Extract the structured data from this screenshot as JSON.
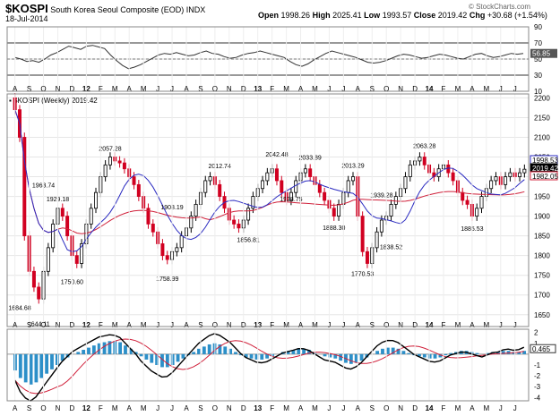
{
  "header": {
    "symbol": "$KOSPI",
    "name": "South Korea Seoul Composite (EOD)",
    "exchange": "INDX",
    "date": "18-Jul-2014",
    "open_label": "Open",
    "open": "1998.26",
    "high_label": "High",
    "high": "2025.41",
    "low_label": "Low",
    "low": "1993.57",
    "close_label": "Close",
    "close": "2019.42",
    "chg_label": "Chg",
    "chg": "+30.68 (+1.54%)",
    "watermark": "© StockCharts.com"
  },
  "colors": {
    "up": "#000000",
    "down": "#d10021",
    "ma_fast": "#2a2ac0",
    "ma_slow": "#d0203a",
    "macd_hist": "#2c8fc8",
    "osc_line": "#333333"
  },
  "chart_data": [
    {
      "type": "line",
      "panel": "oscillator",
      "ylim": [
        10,
        90
      ],
      "yticks": [
        10,
        30,
        50,
        70,
        90
      ],
      "levels": [
        30,
        50,
        70
      ],
      "last_value_label": "56.85",
      "values": [
        52,
        50,
        47,
        48,
        46,
        50,
        55,
        58,
        62,
        66,
        64,
        62,
        66,
        67,
        65,
        63,
        55,
        48,
        42,
        38,
        40,
        43,
        47,
        51,
        55,
        57,
        56,
        58,
        56,
        54,
        55,
        58,
        60,
        57,
        56,
        53,
        51,
        52,
        55,
        57,
        58,
        60,
        58,
        56,
        54,
        52,
        47,
        43,
        41,
        44,
        49,
        53,
        57,
        60,
        58,
        56,
        54,
        52,
        49,
        46,
        45,
        46,
        48,
        51,
        54,
        56,
        55,
        53,
        51,
        52,
        54,
        56,
        55,
        53,
        51,
        50,
        53,
        56,
        57,
        54,
        52,
        53,
        55,
        57,
        56,
        57
      ]
    },
    {
      "type": "candlestick",
      "panel": "price",
      "label": "$KOSPI (Weekly) 2019.42",
      "ylim": [
        1620,
        2210
      ],
      "yticks": [
        1650,
        1700,
        1750,
        1800,
        1850,
        1900,
        1950,
        2000,
        2050,
        2100,
        2150,
        2200
      ],
      "x_tick_labels": [
        "A",
        "S",
        "O",
        "N",
        "D",
        "12",
        "F",
        "M",
        "A",
        "M",
        "J",
        "J",
        "A",
        "S",
        "O",
        "N",
        "D",
        "13",
        "F",
        "M",
        "A",
        "M",
        "J",
        "J",
        "A",
        "S",
        "O",
        "N",
        "D",
        "14",
        "F",
        "M",
        "A",
        "M",
        "J",
        "J"
      ],
      "price_labels": {
        "ma_fast": "1998.53",
        "close": "2019.42",
        "ma_slow": "1982.05"
      },
      "annotations": [
        {
          "text": "1684.68",
          "value": 1684.68,
          "bar": 1
        },
        {
          "text": "1644.11",
          "value": 1644.11,
          "bar": 5
        },
        {
          "text": "1963.74",
          "value": 1963.74,
          "bar": 6
        },
        {
          "text": "1929.18",
          "value": 1929.18,
          "bar": 9
        },
        {
          "text": "1750.60",
          "value": 1750.6,
          "bar": 12
        },
        {
          "text": "2057.28",
          "value": 2057.28,
          "bar": 20
        },
        {
          "text": "1908.19",
          "value": 1908.19,
          "bar": 33
        },
        {
          "text": "1758.99",
          "value": 1758.99,
          "bar": 32
        },
        {
          "text": "2012.74",
          "value": 2012.74,
          "bar": 43
        },
        {
          "text": "1856.81",
          "value": 1856.81,
          "bar": 49
        },
        {
          "text": "2042.48",
          "value": 2042.48,
          "bar": 55
        },
        {
          "text": "1928.75",
          "value": 1928.75,
          "bar": 58
        },
        {
          "text": "2033.89",
          "value": 2033.89,
          "bar": 62
        },
        {
          "text": "1888.30",
          "value": 1888.3,
          "bar": 67
        },
        {
          "text": "2013.29",
          "value": 2013.29,
          "bar": 71
        },
        {
          "text": "1770.53",
          "value": 1770.53,
          "bar": 73
        },
        {
          "text": "1939.28",
          "value": 1939.28,
          "bar": 77
        },
        {
          "text": "1838.52",
          "value": 1838.52,
          "bar": 79
        },
        {
          "text": "2063.28",
          "value": 2063.28,
          "bar": 86
        },
        {
          "text": "1885.53",
          "value": 1885.53,
          "bar": 96
        }
      ],
      "close": [
        2170,
        2100,
        1850,
        1760,
        1720,
        1690,
        1760,
        1820,
        1880,
        1920,
        1900,
        1850,
        1800,
        1780,
        1830,
        1880,
        1920,
        1960,
        2000,
        2030,
        2050,
        2040,
        2035,
        2020,
        2000,
        1980,
        1950,
        1920,
        1880,
        1860,
        1830,
        1800,
        1790,
        1810,
        1820,
        1850,
        1870,
        1900,
        1930,
        1960,
        1990,
        2000,
        1980,
        1950,
        1920,
        1890,
        1880,
        1870,
        1890,
        1920,
        1950,
        1970,
        1990,
        2010,
        2020,
        1990,
        1960,
        1940,
        1960,
        1990,
        2010,
        2020,
        2000,
        1980,
        1960,
        1940,
        1920,
        1900,
        1930,
        1960,
        1990,
        2000,
        1900,
        1810,
        1780,
        1820,
        1860,
        1890,
        1900,
        1930,
        1950,
        1970,
        2000,
        2030,
        2040,
        2050,
        2030,
        2010,
        2000,
        2020,
        2030,
        2010,
        1990,
        1960,
        1940,
        1930,
        1900,
        1920,
        1950,
        1970,
        1990,
        2000,
        1980,
        2000,
        2010,
        2000,
        2010,
        2019
      ]
    },
    {
      "type": "line",
      "panel": "macd",
      "ylim": [
        -4.3,
        2.3
      ],
      "yticks": [
        -4,
        -3,
        -2,
        -1,
        1,
        2
      ],
      "last_value_label": "0.465",
      "hist": [
        -1.5,
        -2.2,
        -2.6,
        -2.8,
        -2.6,
        -2.2,
        -1.8,
        -1.4,
        -1.0,
        -0.6,
        -0.3,
        0,
        0.2,
        0.4,
        0.6,
        0.8,
        1.0,
        1.1,
        1.2,
        1.2,
        1.1,
        0.8,
        0.5,
        0.2,
        -0.2,
        -0.5,
        -0.8,
        -1.0,
        -1.2,
        -1.2,
        -1.0,
        -0.7,
        -0.4,
        -0.1,
        0.2,
        0.5,
        0.7,
        0.9,
        1.0,
        0.9,
        0.7,
        0.5,
        0.2,
        -0.1,
        -0.3,
        -0.4,
        -0.5,
        -0.5,
        -0.4,
        -0.2,
        0,
        0.2,
        0.3,
        0.4,
        0.5,
        0.5,
        0.4,
        0.2,
        0,
        -0.2,
        -0.3,
        -0.4,
        -0.6,
        -0.8,
        -0.9,
        -0.8,
        -0.6,
        -0.3,
        0,
        0.3,
        0.5,
        0.6,
        0.6,
        0.5,
        0.3,
        0.1,
        -0.1,
        -0.2,
        -0.3,
        -0.4,
        -0.4,
        -0.3,
        -0.1,
        0.1,
        0.2,
        0.3,
        0.3,
        0.2,
        0.1,
        0,
        0.1,
        0.2,
        0.2,
        0.3,
        0.3,
        0.2,
        0.2,
        0.3
      ]
    }
  ]
}
